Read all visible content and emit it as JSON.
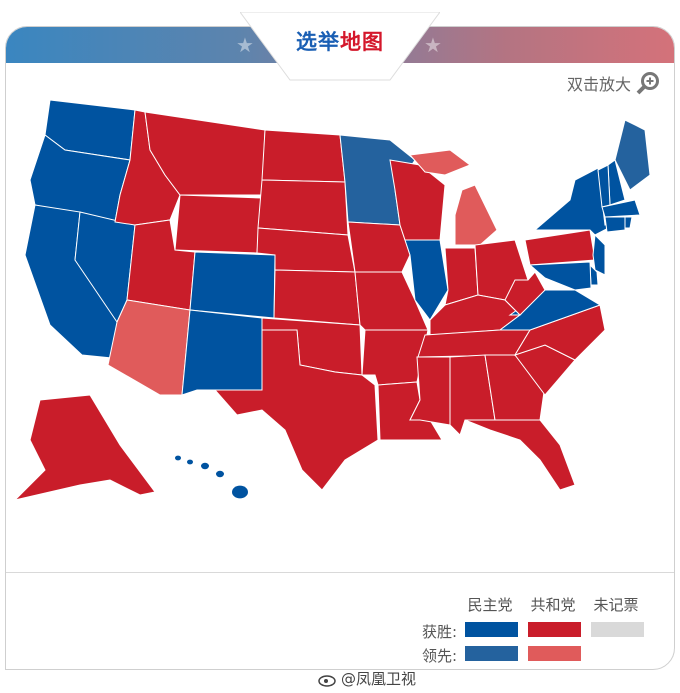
{
  "header": {
    "title_part1": "选举",
    "title_part2": "地图",
    "zoom_hint": "双击放大",
    "title_colors": [
      "#1a5fb4",
      "#d4172b"
    ]
  },
  "legend": {
    "columns": [
      "民主党",
      "共和党",
      "未记票"
    ],
    "rows": [
      {
        "label": "获胜:",
        "colors": [
          "#0053a0",
          "#c91d2a",
          "#d9d9d9"
        ]
      },
      {
        "label": "领先:",
        "colors": [
          "#24629e",
          "#e05b5b"
        ]
      }
    ]
  },
  "colors": {
    "dem_win": "#0053a0",
    "rep_win": "#c91d2a",
    "dem_lead": "#24629e",
    "rep_lead": "#e05b5b",
    "no_count": "#d9d9d9"
  },
  "states": {
    "WA": "dem_win",
    "OR": "dem_win",
    "CA": "dem_win",
    "NV": "dem_win",
    "CO": "dem_win",
    "NM": "dem_win",
    "IL": "dem_win",
    "VA": "dem_win",
    "NY": "dem_win",
    "NJ": "dem_win",
    "DE": "dem_win",
    "MD": "dem_win",
    "VT": "dem_win",
    "NH": "dem_win",
    "MA": "dem_win",
    "CT": "dem_win",
    "RI": "dem_win",
    "HI": "dem_win",
    "ME": "dem_lead",
    "MN": "dem_lead",
    "AZ": "rep_lead",
    "MI": "rep_lead",
    "ID": "rep_win",
    "MT": "rep_win",
    "WY": "rep_win",
    "UT": "rep_win",
    "ND": "rep_win",
    "SD": "rep_win",
    "NE": "rep_win",
    "KS": "rep_win",
    "OK": "rep_win",
    "TX": "rep_win",
    "IA": "rep_win",
    "MO": "rep_win",
    "AR": "rep_win",
    "LA": "rep_win",
    "WI": "rep_win",
    "IN": "rep_win",
    "OH": "rep_win",
    "KY": "rep_win",
    "TN": "rep_win",
    "MS": "rep_win",
    "AL": "rep_win",
    "GA": "rep_win",
    "FL": "rep_win",
    "SC": "rep_win",
    "NC": "rep_win",
    "WV": "rep_win",
    "PA": "rep_win",
    "AK": "rep_win"
  },
  "credit": "@凤凰卫视"
}
